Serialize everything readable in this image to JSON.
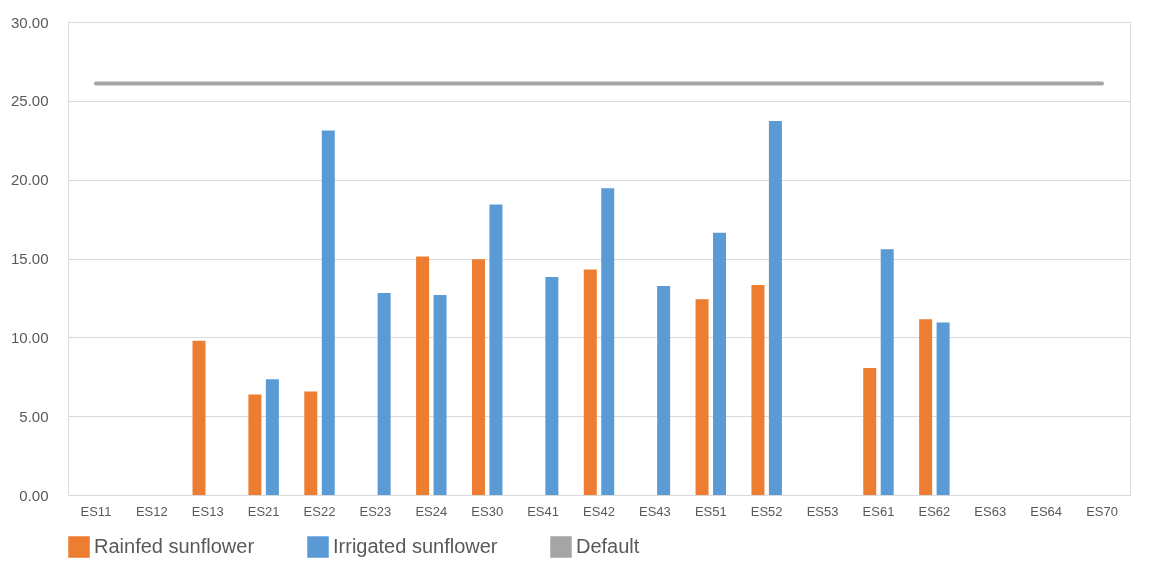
{
  "chart_data": {
    "type": "bar",
    "categories": [
      "ES11",
      "ES12",
      "ES13",
      "ES21",
      "ES22",
      "ES23",
      "ES24",
      "ES30",
      "ES41",
      "ES42",
      "ES43",
      "ES51",
      "ES52",
      "ES53",
      "ES61",
      "ES62",
      "ES63",
      "ES64",
      "ES70"
    ],
    "series": [
      {
        "name": "Rainfed sunflower",
        "color": "#ed7d31",
        "values": [
          null,
          null,
          9.78,
          6.37,
          6.56,
          null,
          15.13,
          14.96,
          null,
          14.3,
          null,
          12.42,
          13.32,
          null,
          8.06,
          11.14,
          null,
          null,
          null
        ]
      },
      {
        "name": "Irrigated sunflower",
        "color": "#5b9bd5",
        "values": [
          null,
          null,
          null,
          7.34,
          23.12,
          12.81,
          12.69,
          18.43,
          13.83,
          19.46,
          13.25,
          16.63,
          23.72,
          null,
          15.58,
          10.94,
          null,
          null,
          null
        ]
      },
      {
        "name": "Default",
        "color": "#a5a5a5",
        "type": "line",
        "values": [
          26.1,
          26.1,
          26.1,
          26.1,
          26.1,
          26.1,
          26.1,
          26.1,
          26.1,
          26.1,
          26.1,
          26.1,
          26.1,
          26.1,
          26.1,
          26.1,
          26.1,
          26.1,
          26.1
        ]
      }
    ],
    "ylim": [
      0,
      30
    ],
    "yticks": [
      {
        "value": 0,
        "label": "0.00"
      },
      {
        "value": 5,
        "label": "5.00"
      },
      {
        "value": 10,
        "label": "10.00"
      },
      {
        "value": 15,
        "label": "15.00"
      },
      {
        "value": 20,
        "label": "20.00"
      },
      {
        "value": 25,
        "label": "25.00"
      },
      {
        "value": 30,
        "label": "30.00"
      }
    ],
    "grid": "y",
    "legend": "bottom"
  }
}
